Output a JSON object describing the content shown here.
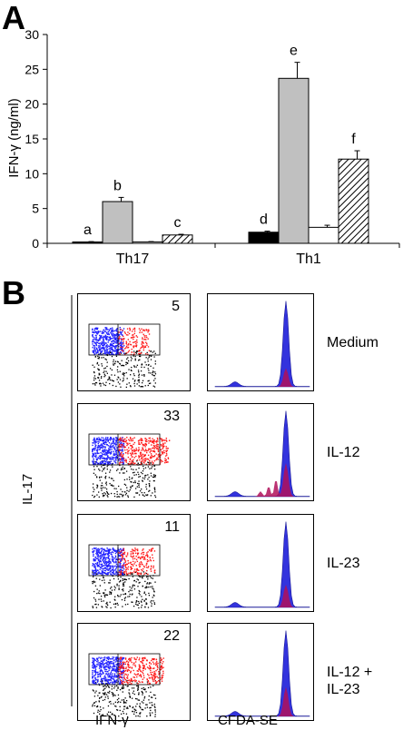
{
  "panel_a_label": "A",
  "panel_b_label": "B",
  "chart_data": {
    "type": "bar",
    "title": "",
    "ylabel": "IFN-γ (ng/ml)",
    "ylim": [
      0,
      30
    ],
    "yticks": [
      "0",
      "5",
      "10",
      "15",
      "20",
      "25",
      "30"
    ],
    "categories": [
      "Th17",
      "Th1"
    ],
    "series": [
      {
        "fill": "#000000",
        "values": [
          0.2,
          1.6
        ],
        "errors": [
          0.05,
          0.15
        ],
        "letters": [
          "a",
          "d"
        ]
      },
      {
        "fill": "#c0c0c0",
        "values": [
          6.0,
          23.7
        ],
        "errors": [
          0.6,
          2.3
        ],
        "letters": [
          "b",
          "e"
        ]
      },
      {
        "fill": "#ffffff",
        "values": [
          0.2,
          2.3
        ],
        "errors": [
          0.05,
          0.3
        ],
        "letters": [
          "",
          ""
        ]
      },
      {
        "fill": "hatch",
        "values": [
          1.2,
          12.1
        ],
        "errors": [
          0.1,
          1.2
        ],
        "letters": [
          "c",
          "f"
        ]
      }
    ],
    "grid": false
  },
  "panel_b": {
    "y_axis_label": "IL-17",
    "x_label_left": "IFN-γ",
    "x_label_right": "CFDA-SE",
    "rows": [
      {
        "condition": "Medium",
        "percent": "5",
        "red_fraction": 0.35
      },
      {
        "condition": "IL-12",
        "percent": "33",
        "red_fraction": 0.9
      },
      {
        "condition": "IL-23",
        "percent": "11",
        "red_fraction": 0.5
      },
      {
        "condition": "IL-12 +\nIL-23",
        "percent": "22",
        "red_fraction": 0.75
      }
    ],
    "colors": {
      "gate_left": "#2020ff",
      "gate_right": "#ff1a1a",
      "histogram_a": "#3333dd",
      "histogram_b": "#b0105a"
    }
  }
}
